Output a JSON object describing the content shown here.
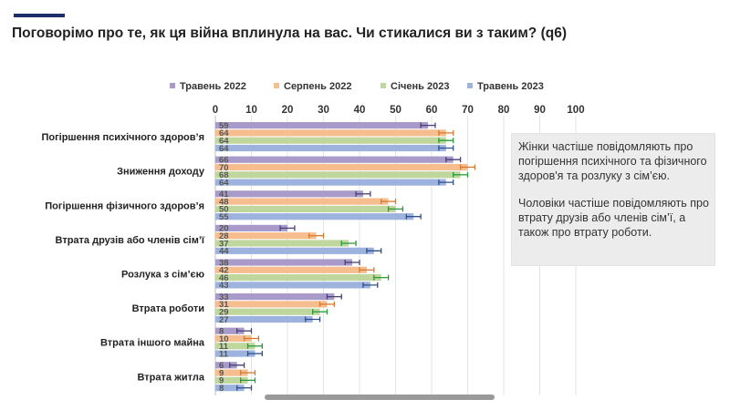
{
  "header": {
    "title": "Поговорімо про те, як ця війна вплинула на вас. Чи стикалися ви з таким? (q6)"
  },
  "note": {
    "paragraph1": "Жінки частіше повідомляють про погіршення психічного та фізичного здоров'я та розлуку з сім’єю.",
    "paragraph2": "Чоловіки частіше повідомляють про втрату друзів або членів сім’ї, а також про втрату роботи."
  },
  "chart_data": {
    "type": "bar",
    "orientation": "horizontal",
    "title": "",
    "xlabel": "",
    "ylabel": "",
    "xlim": [
      0,
      100
    ],
    "xticks": [
      0,
      10,
      20,
      30,
      40,
      50,
      60,
      70,
      80,
      90,
      100
    ],
    "grid": true,
    "legend_position": "top",
    "error_bars": true,
    "error_margin": 2,
    "categories": [
      "Погіршення психічного здоров’я",
      "Зниження доходу",
      "Погіршення фізичного здоров’я",
      "Втрата друзів або членів сім’ї",
      "Розлука з сім’єю",
      "Втрата роботи",
      "Втрата іншого майна",
      "Втрата житла"
    ],
    "series": [
      {
        "name": "Травень 2022",
        "color": "#a99bc9",
        "error_color": "#4a3f78",
        "values": [
          59,
          66,
          41,
          20,
          38,
          33,
          8,
          6
        ]
      },
      {
        "name": "Серпень 2022",
        "color": "#f6be8f",
        "error_color": "#d87a2e",
        "values": [
          64,
          70,
          48,
          28,
          42,
          31,
          10,
          9
        ]
      },
      {
        "name": "Січень 2023",
        "color": "#bfd79c",
        "error_color": "#2a9a3c",
        "values": [
          64,
          68,
          50,
          37,
          46,
          29,
          11,
          9
        ]
      },
      {
        "name": "Травень 2023",
        "color": "#9db3de",
        "error_color": "#2f4f8f",
        "values": [
          64,
          64,
          55,
          44,
          43,
          27,
          11,
          8
        ]
      }
    ]
  }
}
